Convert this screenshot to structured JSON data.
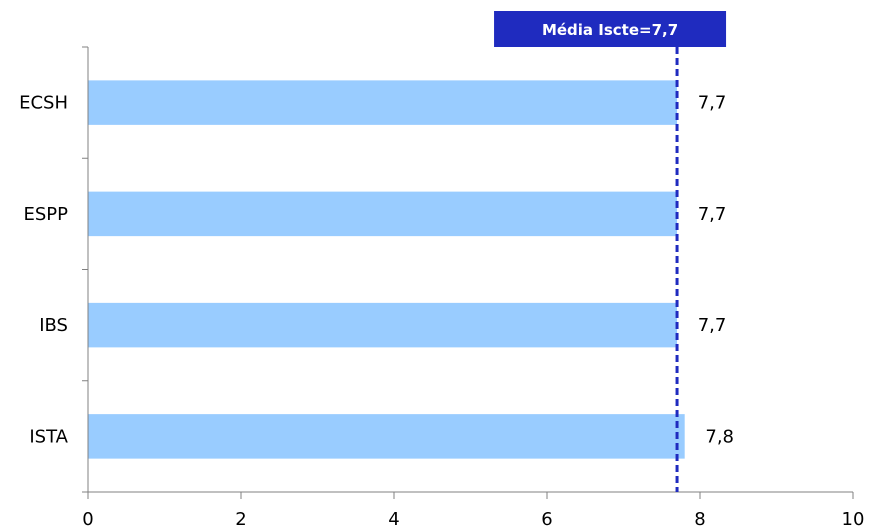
{
  "chart_data": {
    "type": "bar",
    "orientation": "horizontal",
    "categories": [
      "ECSH",
      "ESPP",
      "IBS",
      "ISTA"
    ],
    "values": [
      7.7,
      7.7,
      7.7,
      7.8
    ],
    "value_labels": [
      "7,7",
      "7,7",
      "7,7",
      "7,8"
    ],
    "x_ticks": [
      0,
      2,
      4,
      6,
      8,
      10
    ],
    "xlim": [
      0,
      10
    ],
    "grid": false,
    "legend": "none",
    "reference_line": {
      "value": 7.7,
      "label": "Média Iscte=7,7",
      "style": "dashed"
    },
    "colors": {
      "bar": "#99ccff",
      "reference_line": "#1f2bbf",
      "reference_box": "#1f2bbf",
      "axis": "#808080"
    }
  }
}
